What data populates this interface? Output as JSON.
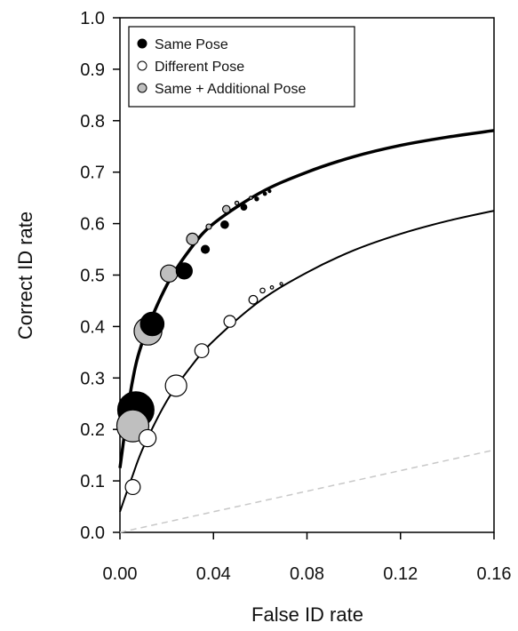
{
  "chart_data": {
    "type": "scatter",
    "xlabel": "False ID rate",
    "ylabel": "Correct ID rate",
    "xlim": [
      0,
      0.16
    ],
    "ylim": [
      0,
      1.0
    ],
    "x_ticks": [
      "0.00",
      "0.04",
      "0.08",
      "0.12",
      "0.16"
    ],
    "x_tick_values": [
      0,
      0.04,
      0.08,
      0.12,
      0.16
    ],
    "y_ticks": [
      "0.0",
      "0.1",
      "0.2",
      "0.3",
      "0.4",
      "0.5",
      "0.6",
      "0.7",
      "0.8",
      "0.9",
      "1.0"
    ],
    "y_tick_values": [
      0,
      0.1,
      0.2,
      0.3,
      0.4,
      0.5,
      0.6,
      0.7,
      0.8,
      0.9,
      1.0
    ],
    "legend_position": "top-left",
    "series": [
      {
        "name": "Same Pose",
        "color": "#000000",
        "points": [
          {
            "x": 0.0068,
            "y": 0.238,
            "size": 3.4
          },
          {
            "x": 0.0138,
            "y": 0.405,
            "size": 2.2
          },
          {
            "x": 0.0275,
            "y": 0.508,
            "size": 1.5
          },
          {
            "x": 0.0365,
            "y": 0.55,
            "size": 0.75
          },
          {
            "x": 0.0448,
            "y": 0.598,
            "size": 0.7
          },
          {
            "x": 0.053,
            "y": 0.632,
            "size": 0.55
          },
          {
            "x": 0.0585,
            "y": 0.648,
            "size": 0.35
          },
          {
            "x": 0.062,
            "y": 0.658,
            "size": 0.3
          },
          {
            "x": 0.064,
            "y": 0.663,
            "size": 0.25
          }
        ]
      },
      {
        "name": "Different Pose",
        "color": "#ffffff",
        "points": [
          {
            "x": 0.0055,
            "y": 0.088,
            "size": 1.4
          },
          {
            "x": 0.0118,
            "y": 0.183,
            "size": 1.6
          },
          {
            "x": 0.024,
            "y": 0.285,
            "size": 2.0
          },
          {
            "x": 0.035,
            "y": 0.353,
            "size": 1.3
          },
          {
            "x": 0.047,
            "y": 0.41,
            "size": 1.1
          },
          {
            "x": 0.057,
            "y": 0.452,
            "size": 0.8
          },
          {
            "x": 0.061,
            "y": 0.47,
            "size": 0.45
          },
          {
            "x": 0.065,
            "y": 0.476,
            "size": 0.3
          },
          {
            "x": 0.069,
            "y": 0.483,
            "size": 0.25
          }
        ]
      },
      {
        "name": "Same + Additional Pose",
        "color": "#bfbfbf",
        "points": [
          {
            "x": 0.0055,
            "y": 0.207,
            "size": 3.0
          },
          {
            "x": 0.012,
            "y": 0.391,
            "size": 2.6
          },
          {
            "x": 0.021,
            "y": 0.503,
            "size": 1.6
          },
          {
            "x": 0.031,
            "y": 0.57,
            "size": 1.1
          },
          {
            "x": 0.038,
            "y": 0.594,
            "size": 0.5
          },
          {
            "x": 0.0455,
            "y": 0.628,
            "size": 0.7
          },
          {
            "x": 0.05,
            "y": 0.64,
            "size": 0.35
          },
          {
            "x": 0.056,
            "y": 0.65,
            "size": 0.3
          }
        ]
      }
    ],
    "fit_curves": [
      {
        "series": "Same",
        "x": [
          0,
          0.005,
          0.01,
          0.02,
          0.03,
          0.04,
          0.06,
          0.08,
          0.1,
          0.12,
          0.14,
          0.16
        ],
        "y": [
          0.125,
          0.285,
          0.375,
          0.48,
          0.55,
          0.6,
          0.66,
          0.7,
          0.73,
          0.752,
          0.768,
          0.781
        ]
      },
      {
        "series": "Different",
        "x": [
          0,
          0.005,
          0.01,
          0.02,
          0.03,
          0.04,
          0.06,
          0.08,
          0.1,
          0.12,
          0.14,
          0.16
        ],
        "y": [
          0.04,
          0.105,
          0.165,
          0.255,
          0.32,
          0.372,
          0.45,
          0.505,
          0.548,
          0.58,
          0.605,
          0.625
        ]
      }
    ],
    "chance_line": {
      "x": [
        0,
        0.16
      ],
      "y": [
        0,
        0.16
      ]
    }
  }
}
